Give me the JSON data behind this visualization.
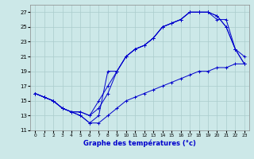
{
  "xlabel": "Graphe des températures (°c)",
  "background_color": "#cce8e8",
  "grid_color": "#aacccc",
  "line_color": "#0000cc",
  "xlim": [
    -0.5,
    23.5
  ],
  "ylim": [
    11,
    28
  ],
  "yticks": [
    11,
    13,
    15,
    17,
    19,
    21,
    23,
    25,
    27
  ],
  "xticks": [
    0,
    1,
    2,
    3,
    4,
    5,
    6,
    7,
    8,
    9,
    10,
    11,
    12,
    13,
    14,
    15,
    16,
    17,
    18,
    19,
    20,
    21,
    22,
    23
  ],
  "series": [
    {
      "x": [
        0,
        1,
        2,
        3,
        4,
        5,
        6,
        7,
        8,
        9,
        10,
        11,
        12,
        13,
        14,
        15,
        16,
        17,
        18,
        19,
        20,
        21,
        22,
        23
      ],
      "y": [
        16,
        15.5,
        15,
        14,
        13.5,
        13.5,
        13,
        14,
        16,
        19,
        21,
        22,
        22.5,
        23.5,
        25,
        25.5,
        26,
        27,
        27,
        27,
        26,
        26,
        22,
        21
      ]
    },
    {
      "x": [
        0,
        1,
        2,
        3,
        4,
        5,
        6,
        7,
        8,
        9,
        10,
        11,
        12,
        13,
        14,
        15,
        16,
        17,
        18,
        19,
        20,
        21,
        22,
        23
      ],
      "y": [
        16,
        15.5,
        15,
        14,
        13.5,
        13.5,
        13,
        15,
        17,
        19,
        21,
        22,
        22.5,
        23.5,
        25,
        25.5,
        26,
        27,
        27,
        27,
        26.5,
        25,
        22,
        20
      ]
    },
    {
      "x": [
        0,
        1,
        2,
        3,
        4,
        5,
        6,
        7,
        8,
        9,
        10,
        11,
        12,
        13,
        14,
        15,
        16,
        17,
        18,
        19,
        20,
        21,
        22,
        23
      ],
      "y": [
        16,
        15.5,
        15,
        14,
        13.5,
        13,
        12,
        13,
        19,
        19,
        21,
        22,
        22.5,
        23.5,
        25,
        25.5,
        26,
        27,
        27,
        27,
        26.5,
        25,
        22,
        20
      ]
    },
    {
      "x": [
        0,
        1,
        2,
        3,
        4,
        5,
        6,
        7,
        8,
        9,
        10,
        11,
        12,
        13,
        14,
        15,
        16,
        17,
        18,
        19,
        20,
        21,
        22,
        23
      ],
      "y": [
        16,
        15.5,
        15,
        14,
        13.5,
        13,
        12,
        12,
        13,
        14,
        15,
        15.5,
        16,
        16.5,
        17,
        17.5,
        18,
        18.5,
        19,
        19,
        19.5,
        19.5,
        20,
        20
      ]
    }
  ]
}
